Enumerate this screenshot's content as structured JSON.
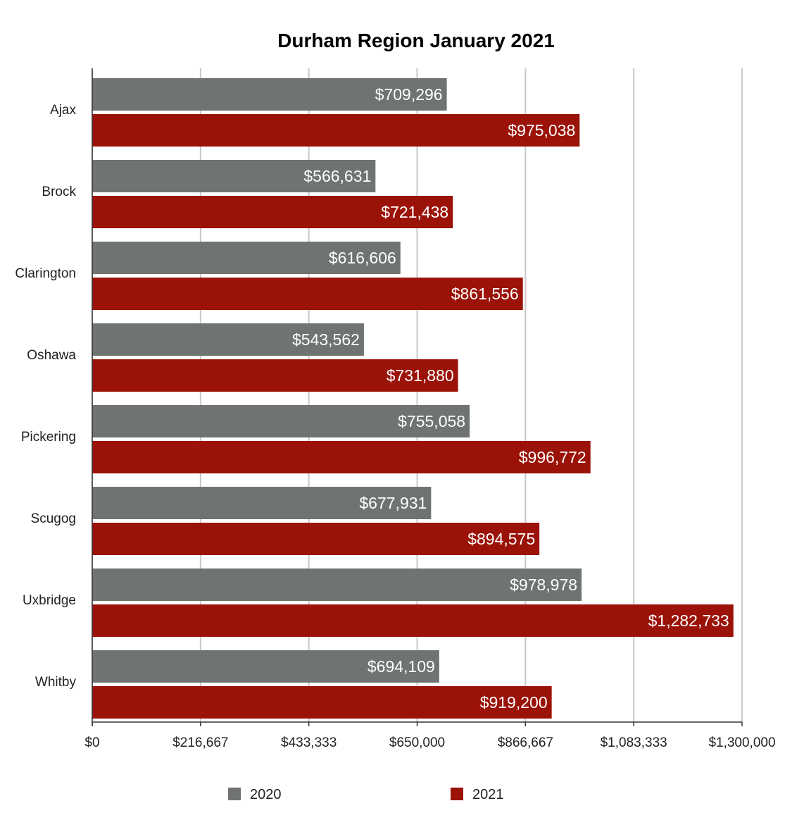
{
  "chart_data": {
    "type": "bar",
    "orientation": "horizontal",
    "title": "Durham Region January 2021",
    "xlabel": "",
    "ylabel": "",
    "xlim": [
      0,
      1300000
    ],
    "x_ticks": [
      0,
      216667,
      433333,
      650000,
      866667,
      1083333,
      1300000
    ],
    "x_tick_labels": [
      "$0",
      "$216,667",
      "$433,333",
      "$650,000",
      "$866,667",
      "$1,083,333",
      "$1,300,000"
    ],
    "grid": true,
    "legend_position": "bottom",
    "categories": [
      "Ajax",
      "Brock",
      "Clarington",
      "Oshawa",
      "Pickering",
      "Scugog",
      "Uxbridge",
      "Whitby"
    ],
    "series": [
      {
        "name": "2020",
        "color": "#6f7470",
        "values": [
          709296,
          566631,
          616606,
          543562,
          755058,
          677931,
          978978,
          694109
        ],
        "labels": [
          "$709,296",
          "$566,631",
          "$616,606",
          "$543,562",
          "$755,058",
          "$677,931",
          "$978,978",
          "$694,109"
        ]
      },
      {
        "name": "2021",
        "color": "#9b1208",
        "values": [
          975038,
          721438,
          861556,
          731880,
          996772,
          894575,
          1282733,
          919200
        ],
        "labels": [
          "$975,038",
          "$721,438",
          "$861,556",
          "$731,880",
          "$996,772",
          "$894,575",
          "$1,282,733",
          "$919,200"
        ]
      }
    ]
  }
}
